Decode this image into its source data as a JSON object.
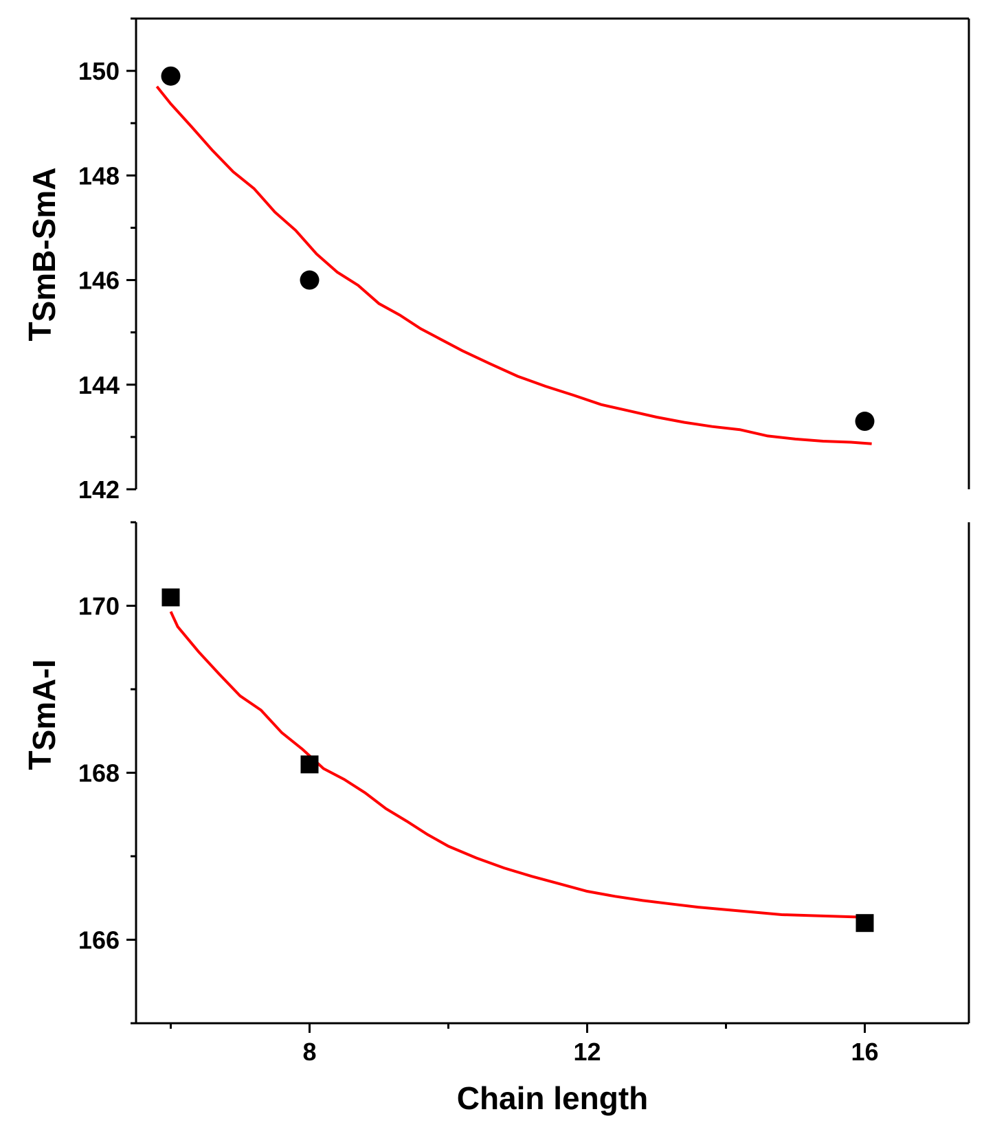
{
  "chart_data": [
    {
      "type": "scatter",
      "ylabel": "TSmB-SmA",
      "ylim": [
        142,
        151
      ],
      "xlim": [
        5.5,
        17.5
      ],
      "yticks": [
        142,
        144,
        146,
        148,
        150
      ],
      "ylabel_main": "T",
      "ylabel_sub": "SmB-SmA",
      "marker": "circle",
      "fit_color": "#ff0000",
      "points": {
        "x": [
          6,
          8,
          16
        ],
        "y": [
          149.9,
          146.0,
          143.3
        ]
      },
      "fit_line": {
        "x": [
          5.8,
          6.0,
          6.3,
          6.6,
          6.9,
          7.2,
          7.5,
          7.8,
          8.1,
          8.4,
          8.7,
          9.0,
          9.3,
          9.6,
          9.9,
          10.2,
          10.6,
          11.0,
          11.4,
          11.8,
          12.2,
          12.6,
          13.0,
          13.4,
          13.8,
          14.2,
          14.6,
          15.0,
          15.4,
          15.8,
          16.1
        ],
        "y": [
          149.7,
          149.37,
          148.93,
          148.48,
          148.07,
          147.75,
          147.3,
          146.95,
          146.5,
          146.15,
          145.9,
          145.55,
          145.33,
          145.07,
          144.86,
          144.65,
          144.4,
          144.16,
          143.97,
          143.8,
          143.62,
          143.5,
          143.38,
          143.28,
          143.2,
          143.14,
          143.02,
          142.96,
          142.92,
          142.9,
          142.87
        ]
      }
    },
    {
      "type": "scatter",
      "xlabel": "Chain length",
      "ylabel": "TSmA-I",
      "ylim": [
        165.0,
        171.0
      ],
      "xlim": [
        5.5,
        17.5
      ],
      "xticks": [
        8,
        12,
        16
      ],
      "yticks": [
        166,
        168,
        170
      ],
      "ylabel_main": "T",
      "ylabel_sub": "SmA-I",
      "marker": "square",
      "fit_color": "#ff0000",
      "points": {
        "x": [
          6,
          8,
          16
        ],
        "y": [
          170.1,
          168.1,
          166.2
        ]
      },
      "fit_line": {
        "x": [
          6.0,
          6.1,
          6.4,
          6.7,
          7.0,
          7.3,
          7.6,
          7.9,
          8.2,
          8.5,
          8.8,
          9.1,
          9.4,
          9.7,
          10.0,
          10.4,
          10.8,
          11.2,
          11.6,
          12.0,
          12.4,
          12.8,
          13.2,
          13.6,
          14.0,
          14.4,
          14.8,
          15.2,
          15.6,
          16.0
        ],
        "y": [
          169.93,
          169.75,
          169.45,
          169.18,
          168.92,
          168.75,
          168.48,
          168.28,
          168.05,
          167.92,
          167.76,
          167.57,
          167.42,
          167.26,
          167.12,
          166.98,
          166.86,
          166.76,
          166.67,
          166.58,
          166.52,
          166.47,
          166.43,
          166.39,
          166.36,
          166.33,
          166.3,
          166.29,
          166.28,
          166.27
        ]
      }
    }
  ]
}
